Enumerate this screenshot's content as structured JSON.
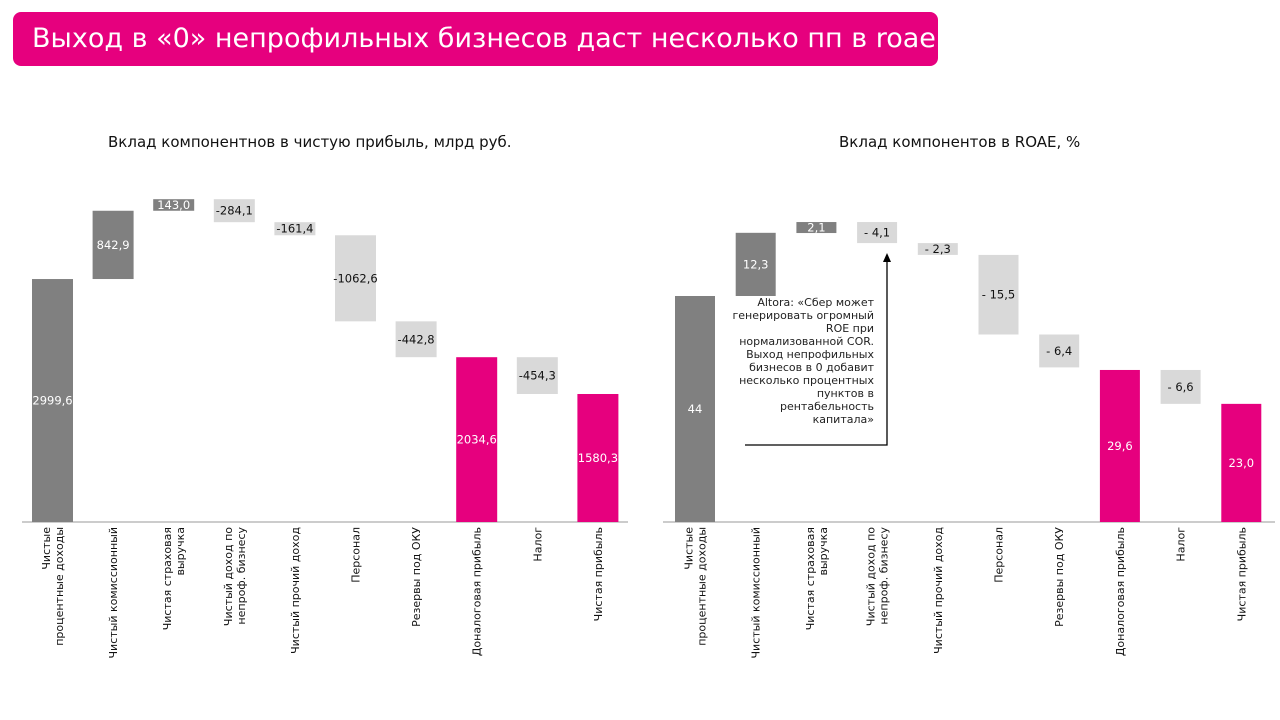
{
  "title": "Выход в «0» непрофильных бизнесов даст несколько пп в roae",
  "colors": {
    "brand": "#e6007e",
    "positive": "#808080",
    "negative": "#d9d9d9"
  },
  "annotation": "Altora: «Сбер может генерировать огромный ROE при нормализованной COR. Выход непрофильных бизнесов в 0 добавит несколько процентных пунктов в рентабельность капитала»",
  "chart_data": [
    {
      "type": "waterfall",
      "title": "Вклад компонентнов в чистую прибыль, млрд руб.",
      "categories": [
        "Чистые процентные доходы",
        "Чистый комиссионный",
        "Чистая страховая выручка",
        "Чистый доход по непроф. бизнесу",
        "Чистый прочий доход",
        "Персонал",
        "Резервы под ОКУ",
        "Доналоговая прибыль",
        "Налог",
        "Чистая прибыль"
      ],
      "values": [
        2999.6,
        842.9,
        143.0,
        -284.1,
        -161.4,
        -1062.6,
        -442.8,
        2034.6,
        -454.3,
        1580.3
      ],
      "labels": [
        "2999,6",
        "842,9",
        "143,0",
        "-284,1",
        "-161,4",
        "-1062,6",
        "-442,8",
        "2034,6",
        "-454,3",
        "1580,3"
      ],
      "kinds": [
        "total",
        "delta",
        "delta",
        "delta",
        "delta",
        "delta",
        "delta",
        "total",
        "delta",
        "total"
      ]
    },
    {
      "type": "waterfall",
      "title": "Вклад компонентов в ROAE, %",
      "categories": [
        "Чистые процентные доходы",
        "Чистый комиссионный",
        "Чистая страховая выручка",
        "Чистый доход по непроф. бизнесу",
        "Чистый прочий доход",
        "Персонал",
        "Резервы под ОКУ",
        "Доналоговая прибыль",
        "Налог",
        "Чистая прибыль"
      ],
      "values": [
        44,
        12.3,
        2.1,
        -4.1,
        -2.3,
        -15.5,
        -6.4,
        29.6,
        -6.6,
        23.0
      ],
      "labels": [
        "44",
        "12,3",
        "2,1",
        "- 4,1",
        "- 2,3",
        "- 15,5",
        "- 6,4",
        "29,6",
        "- 6,6",
        "23,0"
      ],
      "kinds": [
        "total",
        "delta",
        "delta",
        "delta",
        "delta",
        "delta",
        "delta",
        "total",
        "delta",
        "total"
      ]
    }
  ]
}
